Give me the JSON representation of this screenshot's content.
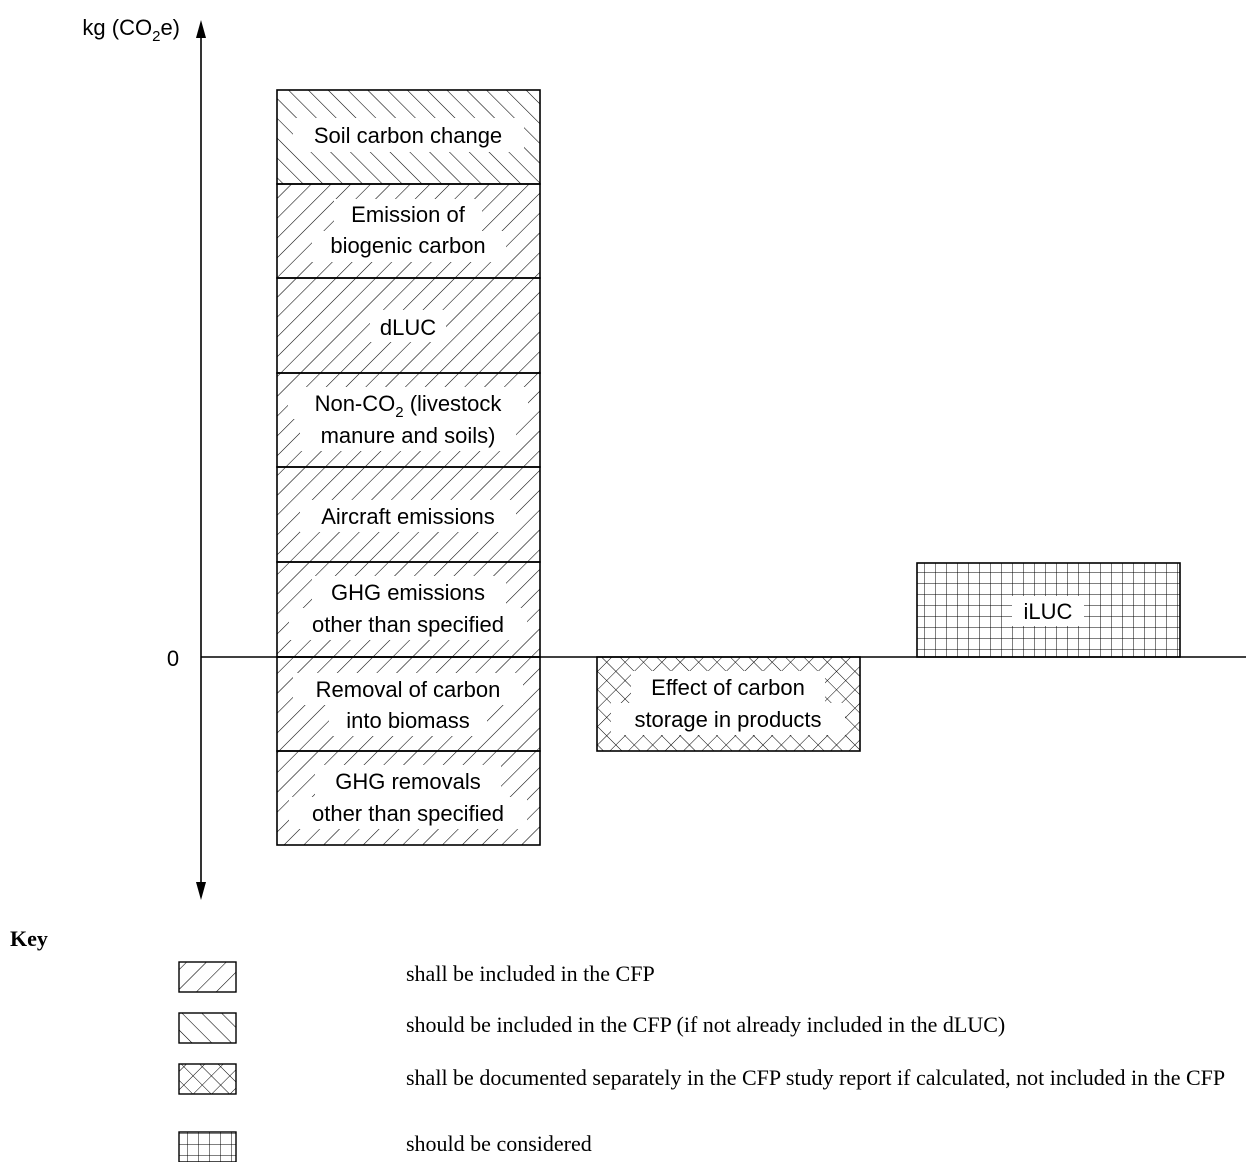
{
  "axis": {
    "y_label_prefix": "kg (CO",
    "y_label_sub": "2",
    "y_label_suffix": "e)",
    "zero_label": "0"
  },
  "stack_main": [
    {
      "id": "soil",
      "lines": [
        "Soil carbon change"
      ],
      "pattern": "should-include"
    },
    {
      "id": "biogenic",
      "lines": [
        "Emission of",
        "biogenic carbon"
      ],
      "pattern": "shall-include"
    },
    {
      "id": "dluc",
      "lines": [
        "dLUC"
      ],
      "pattern": "shall-include"
    },
    {
      "id": "nonco2",
      "line1_prefix": "Non-CO",
      "line1_sub": "2",
      "line1_suffix": " (livestock",
      "line2": "manure and soils)",
      "pattern": "shall-include"
    },
    {
      "id": "aircraft",
      "lines": [
        "Aircraft emissions"
      ],
      "pattern": "shall-include"
    },
    {
      "id": "ghg-emissions",
      "lines": [
        "GHG emissions",
        "other than specified"
      ],
      "pattern": "shall-include"
    },
    {
      "id": "removal",
      "lines": [
        "Removal of carbon",
        "into biomass"
      ],
      "pattern": "shall-include"
    },
    {
      "id": "ghg-removals",
      "lines": [
        "GHG removals",
        "other than specified"
      ],
      "pattern": "shall-include"
    }
  ],
  "storage_box": {
    "lines": [
      "Effect of carbon",
      "storage in products"
    ],
    "pattern": "documented-separately"
  },
  "iluc_box": {
    "lines": [
      "iLUC"
    ],
    "pattern": "should-consider"
  },
  "key": {
    "title": "Key",
    "items": [
      {
        "pattern": "shall-include",
        "text": "shall be included in the CFP"
      },
      {
        "pattern": "should-include",
        "text": "should be included in the CFP (if not already included in the dLUC)"
      },
      {
        "pattern": "documented-separately",
        "text": "shall be documented separately in the CFP study report if calculated, not included in the CFP"
      },
      {
        "pattern": "should-consider",
        "text": "should be considered"
      }
    ]
  }
}
